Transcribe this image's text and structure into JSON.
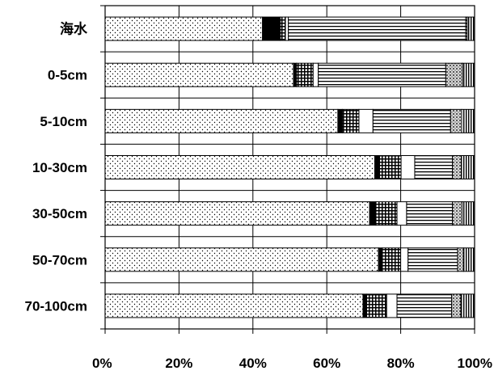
{
  "chart_data": {
    "type": "bar",
    "orientation": "horizontal",
    "stacking": "percent",
    "title": "",
    "xlabel": "",
    "ylabel": "",
    "xlim": [
      0,
      100
    ],
    "grid": true,
    "legend": "none",
    "categories": [
      "海水",
      "0-5cm",
      "5-10cm",
      "10-30cm",
      "30-50cm",
      "50-70cm",
      "70-100cm"
    ],
    "x_ticks": [
      "0%",
      "20%",
      "40%",
      "60%",
      "80%",
      "100%"
    ],
    "series": [
      {
        "pattern": "fine-dots",
        "values": [
          42.6,
          51.0,
          63.0,
          73.0,
          71.6,
          74.0,
          69.8
        ]
      },
      {
        "pattern": "solid-black",
        "values": [
          4.8,
          0.8,
          1.2,
          1.3,
          1.7,
          1.0,
          1.0
        ]
      },
      {
        "pattern": "grid",
        "values": [
          1.4,
          4.5,
          4.5,
          5.8,
          5.7,
          5.0,
          5.4
        ]
      },
      {
        "pattern": "white",
        "values": [
          0.8,
          1.4,
          3.8,
          3.7,
          2.6,
          2.0,
          2.8
        ]
      },
      {
        "pattern": "horizontal-lines",
        "values": [
          48.0,
          34.5,
          21.0,
          10.2,
          12.4,
          13.4,
          14.8
        ]
      },
      {
        "pattern": "coarse-dots",
        "values": [
          0.4,
          4.5,
          3.0,
          2.4,
          2.6,
          1.6,
          2.5
        ]
      },
      {
        "pattern": "vertical-lines",
        "values": [
          2.0,
          3.3,
          3.5,
          3.6,
          3.4,
          3.0,
          3.7
        ]
      }
    ]
  }
}
